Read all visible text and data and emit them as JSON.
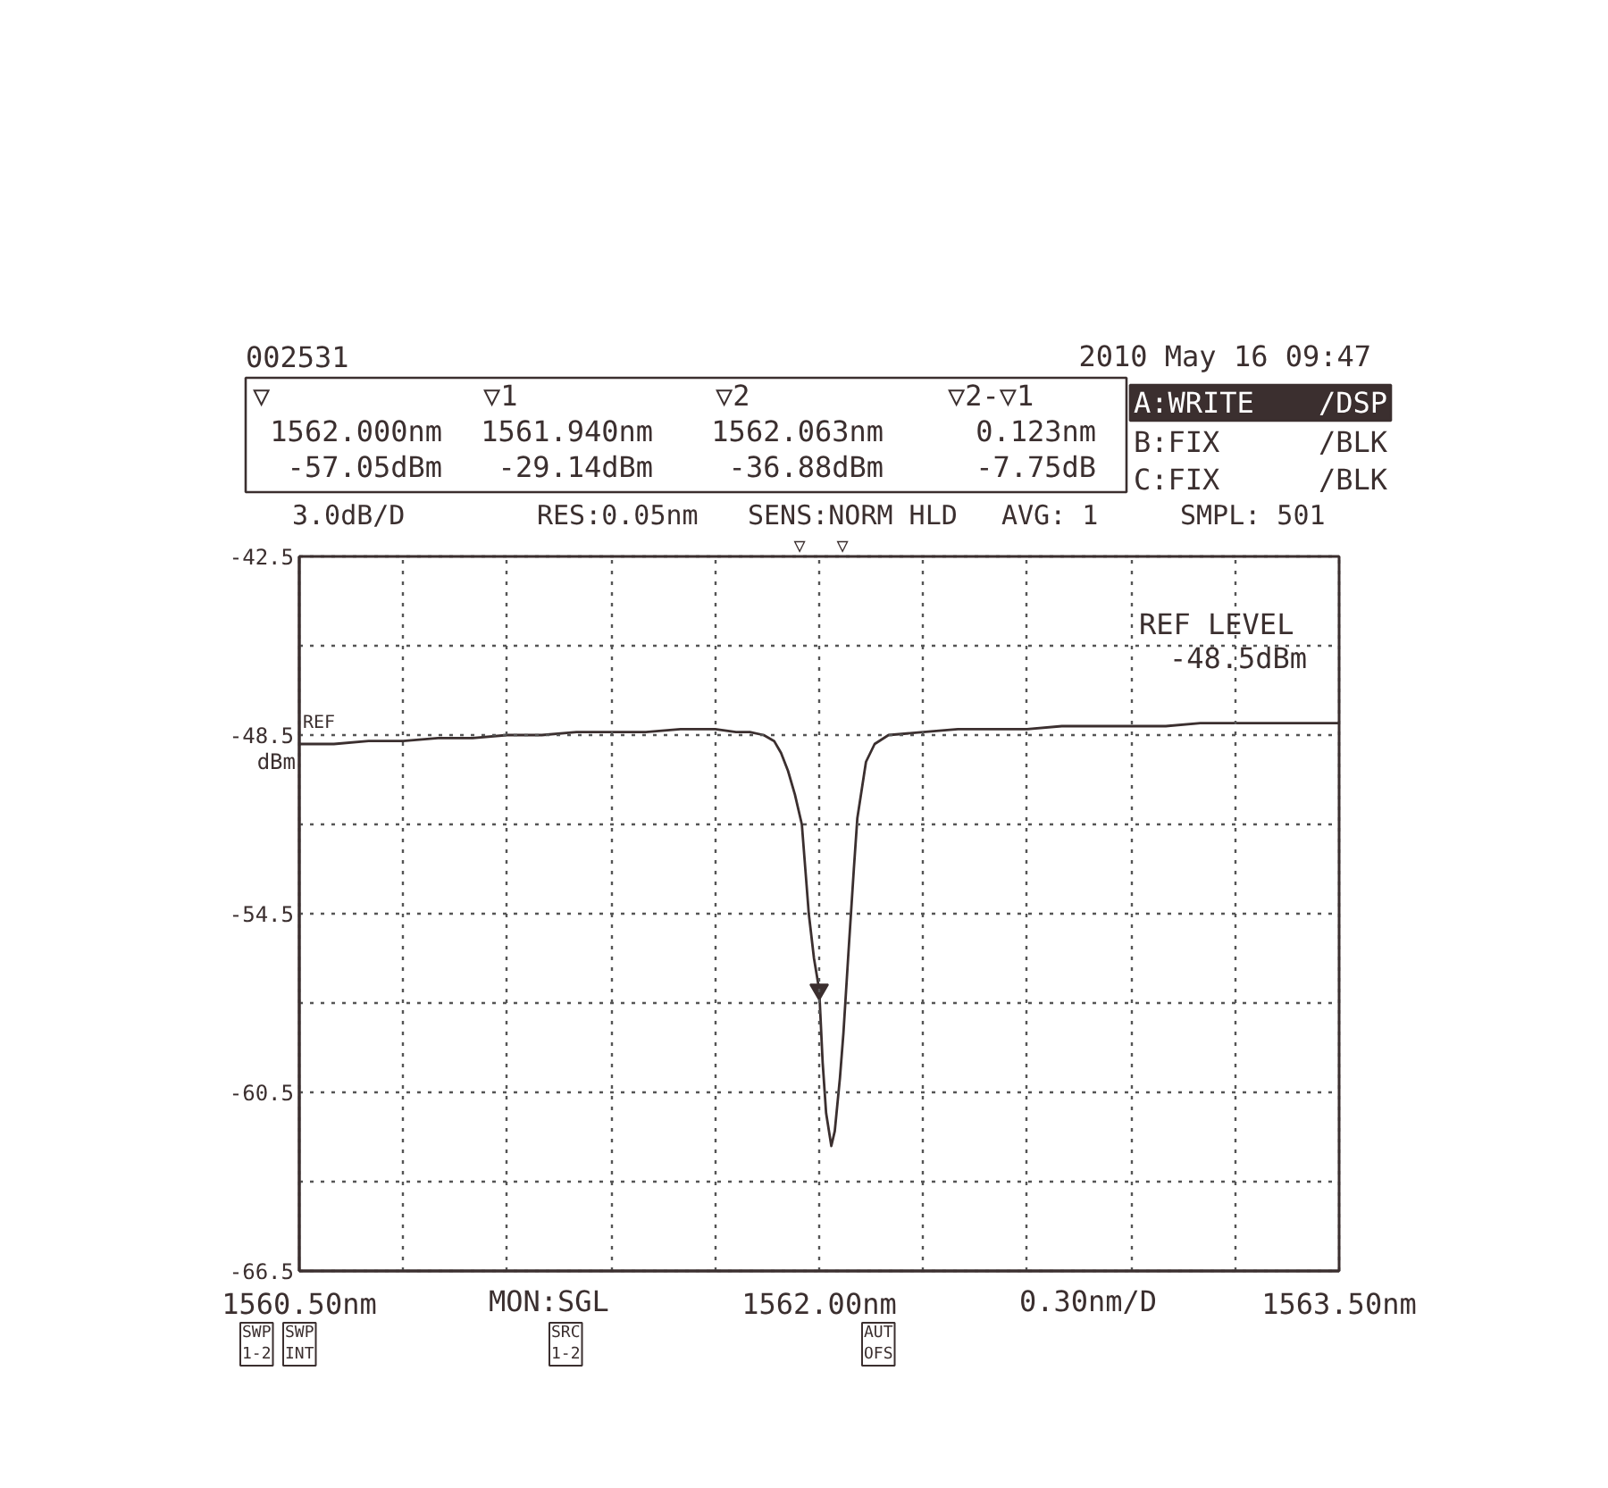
{
  "chart_data": {
    "type": "line",
    "xlabel": "0.30nm/D",
    "ylabel": "dBm",
    "xlim": [
      1560.5,
      1563.5
    ],
    "xticks": [
      {
        "value": 1560.5,
        "label": "1560.50nm"
      },
      {
        "value": 1560.8,
        "label": null
      },
      {
        "value": 1561.1,
        "label": null
      },
      {
        "value": 1561.4,
        "label": null
      },
      {
        "value": 1561.7,
        "label": null
      },
      {
        "value": 1562.0,
        "label": "1562.00nm"
      },
      {
        "value": 1562.3,
        "label": null
      },
      {
        "value": 1562.6,
        "label": null
      },
      {
        "value": 1562.9,
        "label": null
      },
      {
        "value": 1563.2,
        "label": null
      },
      {
        "value": 1563.5,
        "label": "1563.50nm"
      }
    ],
    "ylim": [
      -66.5,
      -42.5
    ],
    "yticks": [
      -66.5,
      {
        "value": -63.5,
        "label": null
      },
      -60.5,
      {
        "value": -57.5,
        "label": null
      },
      -54.5,
      {
        "value": -51.5,
        "label": null
      },
      -48.5,
      {
        "value": -45.5,
        "label": null
      },
      -42.5
    ],
    "grid": true,
    "series": [
      {
        "color": "#3b2f2f",
        "x": [
          1560.5,
          1560.6,
          1560.7,
          1560.8,
          1560.9,
          1561.0,
          1561.1,
          1561.2,
          1561.3,
          1561.4,
          1561.5,
          1561.6,
          1561.7,
          1561.76,
          1561.8,
          1561.84,
          1561.87,
          1561.89,
          1561.91,
          1561.93,
          1561.95,
          1561.96,
          1561.97,
          1561.985,
          1562.0,
          1562.01,
          1562.02,
          1562.035,
          1562.045,
          1562.06,
          1562.07,
          1562.085,
          1562.1,
          1562.11,
          1562.135,
          1562.16,
          1562.2,
          1562.3,
          1562.4,
          1562.5,
          1562.6,
          1562.7,
          1562.8,
          1562.9,
          1563.0,
          1563.1,
          1563.2,
          1563.3,
          1563.4,
          1563.5
        ],
        "values": [
          -48.8,
          -48.8,
          -48.7,
          -48.7,
          -48.6,
          -48.6,
          -48.5,
          -48.5,
          -48.4,
          -48.4,
          -48.4,
          -48.3,
          -48.3,
          -48.4,
          -48.4,
          -48.5,
          -48.7,
          -49.1,
          -49.7,
          -50.5,
          -51.5,
          -53.0,
          -54.5,
          -56.0,
          -57.05,
          -59.5,
          -61.2,
          -62.3,
          -61.8,
          -60.0,
          -58.5,
          -55.7,
          -53.0,
          -51.3,
          -49.4,
          -48.8,
          -48.5,
          -48.4,
          -48.3,
          -48.3,
          -48.3,
          -48.2,
          -48.2,
          -48.2,
          -48.2,
          -48.1,
          -48.1,
          -48.1,
          -48.1,
          -48.1
        ]
      },
      {
        "type": "scatter",
        "marker": "triangle",
        "color": "#3b2f2f",
        "x": [
          1562.0
        ],
        "values": [
          -57.05
        ]
      }
    ],
    "annotations": [
      "002531",
      "2010 May 16 09:47",
      "▽",
      "▽1",
      "▽2",
      "▽2-▽1",
      "1562.000nm",
      "-57.05dBm",
      "1561.940nm",
      "-29.14dBm",
      "1562.063nm",
      "-36.88dBm",
      "0.123nm",
      "-7.75dB",
      "A:WRITE",
      "/DSP",
      "B:FIX",
      "/BLK",
      "C:FIX",
      "/BLK",
      "3.0dB/D",
      "RES:0.05nm",
      "SENS:NORM HLD",
      "AVG: 1",
      "SMPL: 501",
      "REF LEVEL",
      "-48.5dBm",
      "MON:SGL",
      "SWP\n1-2",
      "SWP\nINT",
      "SRC\n1-2",
      "AUT\nOFS",
      "▽",
      "▽",
      {
        "text": "REF",
        "x": 1560.5,
        "y": -48.5
      }
    ]
  }
}
